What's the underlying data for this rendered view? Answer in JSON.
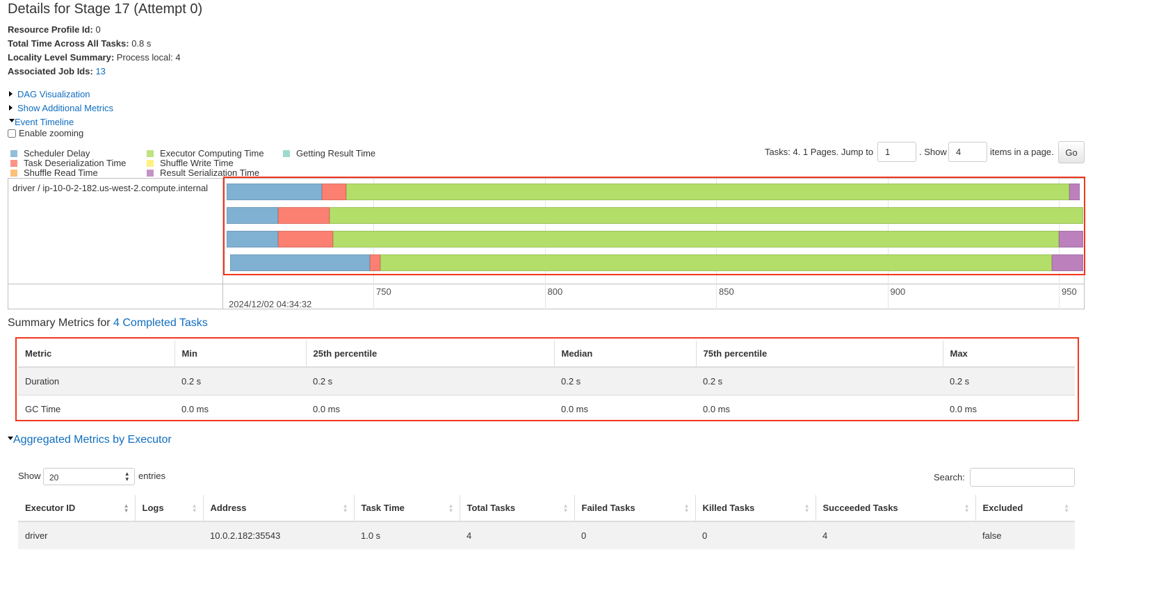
{
  "page_title": "Details for Stage 17 (Attempt 0)",
  "info": [
    {
      "label": "Resource Profile Id:",
      "value": "0"
    },
    {
      "label": "Total Time Across All Tasks:",
      "value": "0.8 s"
    },
    {
      "label": "Locality Level Summary:",
      "value": "Process local: 4"
    },
    {
      "label": "Associated Job Ids:",
      "value": "13"
    }
  ],
  "toggles": {
    "dag": "DAG Visualization",
    "additional_metrics": "Show Additional Metrics",
    "event_timeline": "Event Timeline",
    "enable_zooming": "Enable zooming"
  },
  "legend": [
    {
      "label": "Scheduler Delay",
      "color": "#80b1d3"
    },
    {
      "label": "Task Deserialization Time",
      "color": "#fb8072"
    },
    {
      "label": "Shuffle Read Time",
      "color": "#fdb462"
    },
    {
      "label": "Executor Computing Time",
      "color": "#b3de69"
    },
    {
      "label": "Shuffle Write Time",
      "color": "#ffed6f"
    },
    {
      "label": "Result Serialization Time",
      "color": "#bc80bd"
    },
    {
      "label": "Getting Result Time",
      "color": "#8dd3c7"
    }
  ],
  "pagination": {
    "text_prefix": "Tasks: 4. 1 Pages. Jump to",
    "jump_value": "1",
    "text_show": ". Show",
    "show_value": "4",
    "text_suffix": "items in a page.",
    "go": "Go"
  },
  "timeline": {
    "group_label": "driver / ip-10-0-2-182.us-west-2.compute.internal",
    "date_label": "2024/12/02 04:34:32",
    "axis_ticks": [
      "750",
      "800",
      "850",
      "900",
      "950"
    ],
    "tasks": [
      [
        [
          707.2,
          735.0,
          0
        ],
        [
          735.0,
          742.1,
          1
        ],
        [
          742.1,
          953.0,
          3
        ],
        [
          953.0,
          956.1,
          5
        ]
      ],
      [
        [
          707.2,
          722.2,
          0
        ],
        [
          722.2,
          737.2,
          1
        ],
        [
          737.2,
          957.1,
          3
        ]
      ],
      [
        [
          707.2,
          722.2,
          0
        ],
        [
          722.2,
          738.2,
          1
        ],
        [
          738.2,
          950.0,
          3
        ],
        [
          950.0,
          957.1,
          5
        ]
      ],
      [
        [
          708.2,
          749.0,
          0
        ],
        [
          749.0,
          752.0,
          1
        ],
        [
          752.0,
          948.0,
          3
        ],
        [
          948.0,
          957.1,
          5
        ]
      ]
    ]
  },
  "summary": {
    "title_prefix": "Summary Metrics for ",
    "title_link": "4 Completed Tasks",
    "headers": [
      "Metric",
      "Min",
      "25th percentile",
      "Median",
      "75th percentile",
      "Max"
    ],
    "rows": [
      [
        "Duration",
        "0.2 s",
        "0.2 s",
        "0.2 s",
        "0.2 s",
        "0.2 s"
      ],
      [
        "GC Time",
        "0.0 ms",
        "0.0 ms",
        "0.0 ms",
        "0.0 ms",
        "0.0 ms"
      ]
    ]
  },
  "aggregated": {
    "title": "Aggregated Metrics by Executor",
    "show_label": "Show",
    "entries_value": "20",
    "entries_label": "entries",
    "search_label": "Search:",
    "search_value": "",
    "headers": [
      "Executor ID",
      "Logs",
      "Address",
      "Task Time",
      "Total Tasks",
      "Failed Tasks",
      "Killed Tasks",
      "Succeeded Tasks",
      "Excluded"
    ],
    "rows": [
      [
        "driver",
        "",
        "10.0.2.182:35543",
        "1.0 s",
        "4",
        "0",
        "0",
        "4",
        "false"
      ]
    ]
  }
}
